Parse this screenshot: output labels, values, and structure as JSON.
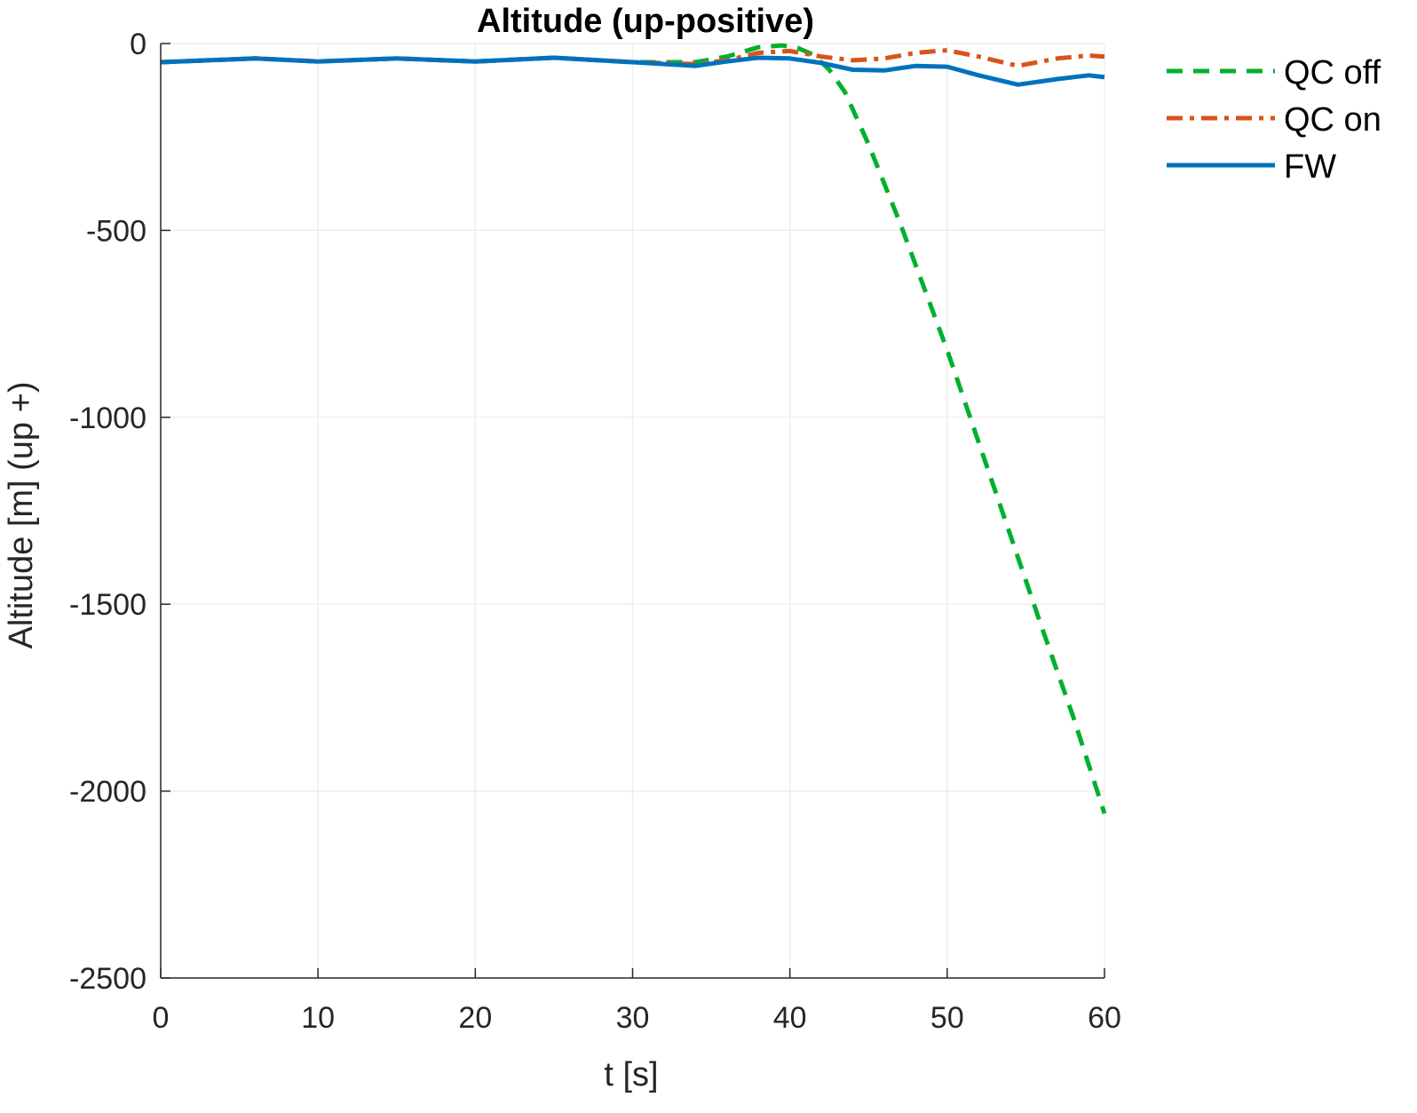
{
  "chart_data": {
    "type": "line",
    "title": "Altitude (up-positive)",
    "xlabel": "t [s]",
    "ylabel": "Altitude [m] (up +)",
    "xlim": [
      0,
      60
    ],
    "ylim": [
      -2500,
      0
    ],
    "xticks": [
      0,
      10,
      20,
      30,
      40,
      50,
      60
    ],
    "yticks": [
      0,
      -500,
      -1000,
      -1500,
      -2000,
      -2500
    ],
    "grid": true,
    "legend_position": "outside-top-right",
    "series": [
      {
        "name": "QC off",
        "color": "#00b02d",
        "style": "dashed",
        "x": [
          0,
          3,
          6,
          10,
          15,
          20,
          25,
          30,
          34,
          36,
          38,
          39.5,
          40.5,
          41.5,
          42.5,
          43.5,
          45,
          47,
          50,
          53,
          56,
          58,
          60
        ],
        "y": [
          -50,
          -45,
          -40,
          -48,
          -40,
          -48,
          -38,
          -50,
          -50,
          -35,
          -10,
          -5,
          -12,
          -30,
          -70,
          -130,
          -270,
          -480,
          -820,
          -1190,
          -1560,
          -1800,
          -2060
        ]
      },
      {
        "name": "QC on",
        "color": "#d95319",
        "style": "dashdot",
        "x": [
          0,
          3,
          6,
          10,
          15,
          20,
          25,
          30,
          34,
          36,
          38,
          40,
          42,
          44,
          46,
          48,
          50,
          52,
          54.5,
          57,
          59,
          60
        ],
        "y": [
          -50,
          -45,
          -40,
          -48,
          -40,
          -48,
          -38,
          -50,
          -55,
          -45,
          -25,
          -20,
          -35,
          -45,
          -40,
          -25,
          -18,
          -35,
          -60,
          -40,
          -32,
          -35
        ]
      },
      {
        "name": "FW",
        "color": "#0072bd",
        "style": "solid",
        "x": [
          0,
          3,
          6,
          10,
          15,
          20,
          25,
          30,
          34,
          36,
          38,
          40,
          42,
          44,
          46,
          48,
          50,
          52,
          54.5,
          57,
          59,
          60
        ],
        "y": [
          -50,
          -45,
          -40,
          -48,
          -40,
          -48,
          -38,
          -50,
          -60,
          -48,
          -38,
          -40,
          -52,
          -70,
          -72,
          -60,
          -62,
          -85,
          -110,
          -95,
          -85,
          -90
        ]
      }
    ]
  }
}
